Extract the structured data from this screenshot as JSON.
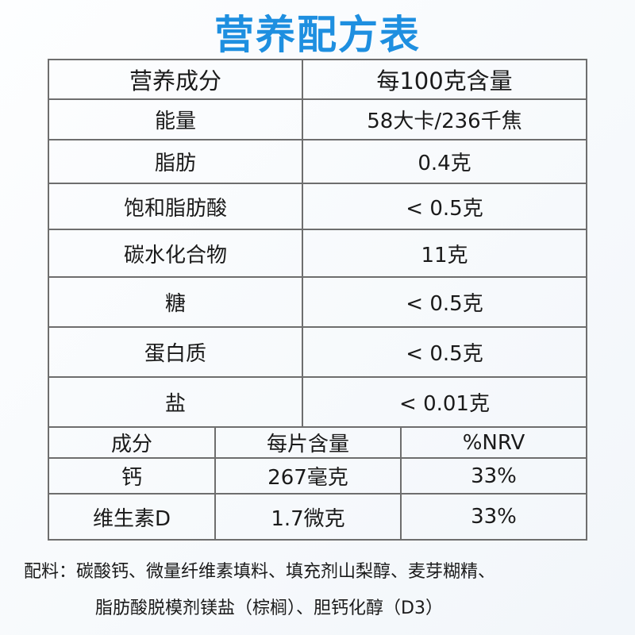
{
  "title": "营养配方表",
  "table1": {
    "header": [
      "营养成分",
      "每100克含量"
    ],
    "rows": [
      [
        "能量",
        "58大卡/236千焦"
      ],
      [
        "脂肪",
        "0.4克"
      ],
      [
        "饱和脂肪酸",
        "< 0.5克"
      ],
      [
        "碳水化合物",
        "11克"
      ],
      [
        "糖",
        "< 0.5克"
      ],
      [
        "蛋白质",
        "< 0.5克"
      ],
      [
        "盐",
        "< 0.01克"
      ]
    ]
  },
  "table2": {
    "header": [
      "成分",
      "每片含量",
      "%NRV"
    ],
    "rows": [
      [
        "钙",
        "267毫克",
        "33%"
      ],
      [
        "维生素D",
        "1.7微克",
        "33%"
      ]
    ]
  },
  "ingredients": {
    "label": "配料：",
    "lines": [
      "碳酸钙、微量纤维素填料、填充剂山梨醇、麦芽糊精、",
      "脂肪酸脱模剂镁盐（棕榈）、胆钙化醇（D3）"
    ]
  }
}
